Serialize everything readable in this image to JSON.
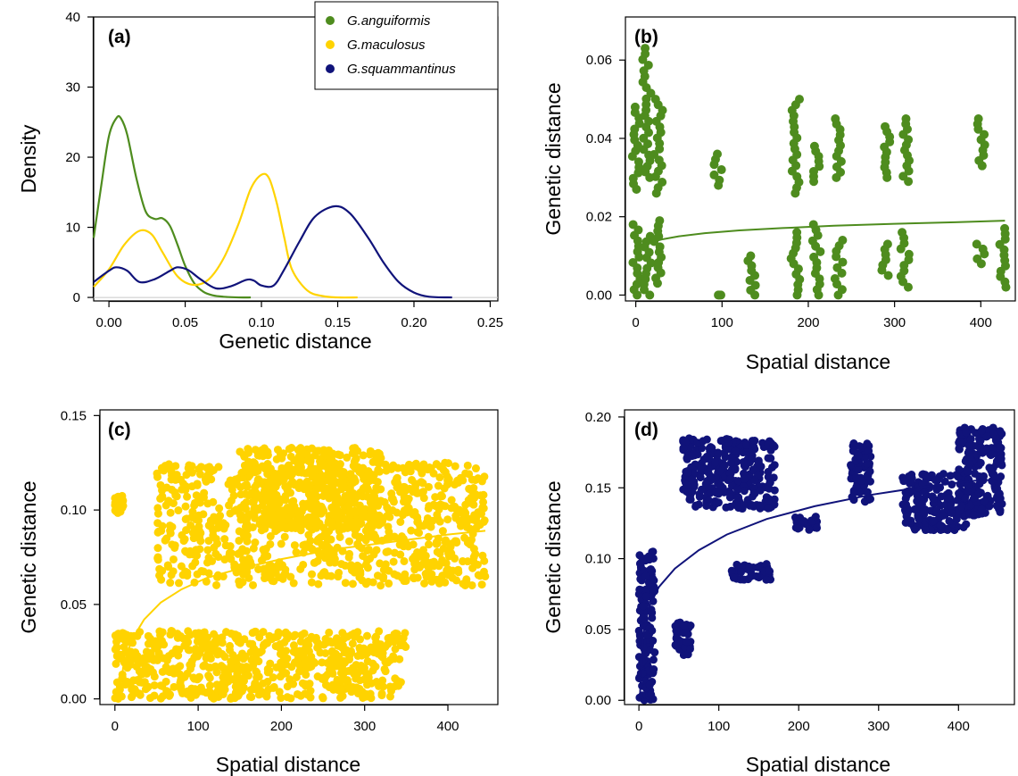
{
  "colors": {
    "anguiformis": "#4e8c1e",
    "maculosus": "#ffd300",
    "squammantinus": "#10137a",
    "zero_line": "#c8c8c8"
  },
  "chart_data": [
    {
      "panel": "(a)",
      "type": "line",
      "xlabel": "Genetic distance",
      "ylabel": "Density",
      "xlim": [
        -0.01,
        0.255
      ],
      "ylim": [
        -0.5,
        40
      ],
      "xticks": [
        "0.00",
        "0.05",
        "0.10",
        "0.15",
        "0.20",
        "0.25"
      ],
      "xtick_values": [
        0,
        0.05,
        0.1,
        0.15,
        0.2,
        0.25
      ],
      "yticks": [
        "0",
        "10",
        "20",
        "30",
        "40"
      ],
      "ytick_values": [
        0,
        10,
        20,
        30,
        40
      ],
      "legend": {
        "placement": "top-right",
        "entries": [
          "G.anguiformis",
          "G.maculosus",
          "G.squammantinus"
        ]
      },
      "series": [
        {
          "name": "G.anguiformis",
          "color_key": "anguiformis",
          "x": [
            -0.01,
            -0.005,
            0.0,
            0.005,
            0.008,
            0.012,
            0.018,
            0.024,
            0.03,
            0.035,
            0.04,
            0.045,
            0.05,
            0.056,
            0.062,
            0.068,
            0.075,
            0.085,
            0.093
          ],
          "y": [
            8.5,
            16,
            23,
            25.6,
            25.5,
            23.2,
            17,
            12.3,
            11.2,
            11.3,
            10.2,
            7.5,
            4.5,
            2,
            0.8,
            0.3,
            0.1,
            0,
            0
          ]
        },
        {
          "name": "G.maculosus",
          "color_key": "maculosus",
          "x": [
            -0.01,
            0.0,
            0.01,
            0.02,
            0.028,
            0.035,
            0.045,
            0.055,
            0.065,
            0.075,
            0.085,
            0.093,
            0.1,
            0.105,
            0.11,
            0.115,
            0.12,
            0.13,
            0.14,
            0.15,
            0.163
          ],
          "y": [
            1.5,
            4,
            7.5,
            9.5,
            9,
            6.5,
            3,
            1.8,
            2.5,
            5.5,
            10.5,
            15.5,
            17.5,
            17,
            13.5,
            8.5,
            4,
            1,
            0.2,
            0,
            0
          ]
        },
        {
          "name": "G.squammantinus",
          "color_key": "squammantinus",
          "x": [
            -0.01,
            0.0,
            0.005,
            0.012,
            0.02,
            0.03,
            0.04,
            0.045,
            0.052,
            0.06,
            0.07,
            0.08,
            0.09,
            0.095,
            0.1,
            0.108,
            0.115,
            0.125,
            0.135,
            0.148,
            0.158,
            0.17,
            0.18,
            0.19,
            0.2,
            0.21,
            0.225
          ],
          "y": [
            2.2,
            3.8,
            4.3,
            3.8,
            2.2,
            2.6,
            3.8,
            4.3,
            3.9,
            2.6,
            1.3,
            1.6,
            2.5,
            2.4,
            1.7,
            1.7,
            4,
            8,
            11.5,
            13,
            12,
            8.5,
            5,
            2.2,
            0.7,
            0.1,
            0
          ]
        }
      ]
    },
    {
      "panel": "(b)",
      "type": "scatter",
      "xlabel": "Spatial distance",
      "ylabel": "Genetic distance",
      "xlim": [
        -12,
        440
      ],
      "ylim": [
        -0.0015,
        0.071
      ],
      "xticks": [
        "0",
        "100",
        "200",
        "300",
        "400"
      ],
      "xtick_values": [
        0,
        100,
        200,
        300,
        400
      ],
      "yticks": [
        "0.00",
        "0.02",
        "0.04",
        "0.06"
      ],
      "ytick_values": [
        0,
        0.02,
        0.04,
        0.06
      ],
      "color_key": "anguiformis",
      "fit": {
        "x": [
          1,
          5,
          15,
          30,
          50,
          80,
          120,
          170,
          230,
          300,
          370,
          428
        ],
        "y": [
          0.0118,
          0.0124,
          0.0133,
          0.0142,
          0.015,
          0.0158,
          0.0165,
          0.0171,
          0.0177,
          0.0182,
          0.0186,
          0.019
        ]
      },
      "columns": [
        {
          "x": 0,
          "lo": 0.0,
          "hi": 0.018,
          "lo2": 0.027,
          "hi2": 0.048
        },
        {
          "x": 13,
          "lo": 0.0,
          "hi": 0.015,
          "lo2": 0.03,
          "hi2": 0.063
        },
        {
          "x": 26,
          "lo": 0.003,
          "hi": 0.019,
          "lo2": 0.026,
          "hi2": 0.05
        },
        {
          "x": 95,
          "lo": 0.0,
          "hi": 0.0,
          "lo2": 0.028,
          "hi2": 0.036
        },
        {
          "x": 135,
          "lo": 0.0,
          "hi": 0.01,
          "lo2": null,
          "hi2": null
        },
        {
          "x": 185,
          "lo": 0.0,
          "hi": 0.016,
          "lo2": 0.026,
          "hi2": 0.05
        },
        {
          "x": 210,
          "lo": 0.0,
          "hi": 0.018,
          "lo2": 0.029,
          "hi2": 0.038
        },
        {
          "x": 235,
          "lo": 0.0,
          "hi": 0.014,
          "lo2": 0.03,
          "hi2": 0.045
        },
        {
          "x": 290,
          "lo": 0.005,
          "hi": 0.013,
          "lo2": 0.03,
          "hi2": 0.043
        },
        {
          "x": 312,
          "lo": 0.002,
          "hi": 0.016,
          "lo2": 0.029,
          "hi2": 0.045
        },
        {
          "x": 400,
          "lo": 0.008,
          "hi": 0.013,
          "lo2": 0.033,
          "hi2": 0.045
        },
        {
          "x": 425,
          "lo": 0.002,
          "hi": 0.017,
          "lo2": null,
          "hi2": null
        }
      ]
    },
    {
      "panel": "(c)",
      "type": "scatter",
      "xlabel": "Spatial distance",
      "ylabel": "Genetic distance",
      "xlim": [
        -18,
        460
      ],
      "ylim": [
        -0.003,
        0.153
      ],
      "xticks": [
        "0",
        "100",
        "200",
        "300",
        "400"
      ],
      "xtick_values": [
        0,
        100,
        200,
        300,
        400
      ],
      "yticks": [
        "0.00",
        "0.05",
        "0.10",
        "0.15"
      ],
      "ytick_values": [
        0,
        0.05,
        0.1,
        0.15
      ],
      "color_key": "maculosus",
      "fit": {
        "x": [
          5,
          10,
          20,
          35,
          55,
          80,
          110,
          150,
          200,
          260,
          330,
          400,
          445
        ],
        "y": [
          0.0,
          0.017,
          0.031,
          0.042,
          0.051,
          0.058,
          0.064,
          0.069,
          0.074,
          0.079,
          0.083,
          0.087,
          0.089
        ]
      },
      "clouds": [
        {
          "x0": 0,
          "x1": 350,
          "lo": 0.0,
          "hi": 0.036
        },
        {
          "x0": 0,
          "x1": 10,
          "lo": 0.098,
          "hi": 0.108
        },
        {
          "x0": 50,
          "x1": 445,
          "lo": 0.06,
          "hi": 0.125
        },
        {
          "x0": 150,
          "x1": 320,
          "lo": 0.09,
          "hi": 0.133
        }
      ]
    },
    {
      "panel": "(d)",
      "type": "scatter",
      "xlabel": "Spatial distance",
      "ylabel": "Genetic distance",
      "xlim": [
        -18,
        470
      ],
      "ylim": [
        -0.003,
        0.205
      ],
      "xticks": [
        "0",
        "100",
        "200",
        "300",
        "400"
      ],
      "xtick_values": [
        0,
        100,
        200,
        300,
        400
      ],
      "yticks": [
        "0.00",
        "0.05",
        "0.10",
        "0.15",
        "0.20"
      ],
      "ytick_values": [
        0,
        0.05,
        0.1,
        0.15,
        0.2
      ],
      "color_key": "squammantinus",
      "fit": {
        "x": [
          1,
          5,
          12,
          25,
          45,
          75,
          110,
          160,
          220,
          290,
          360,
          420,
          455
        ],
        "y": [
          0.0,
          0.045,
          0.065,
          0.08,
          0.093,
          0.106,
          0.117,
          0.128,
          0.137,
          0.145,
          0.151,
          0.155,
          0.156
        ]
      },
      "clouds": [
        {
          "x0": 0,
          "x1": 20,
          "lo": 0.0,
          "hi": 0.105
        },
        {
          "x0": 45,
          "x1": 65,
          "lo": 0.03,
          "hi": 0.056
        },
        {
          "x0": 55,
          "x1": 170,
          "lo": 0.135,
          "hi": 0.185
        },
        {
          "x0": 115,
          "x1": 165,
          "lo": 0.085,
          "hi": 0.097
        },
        {
          "x0": 195,
          "x1": 225,
          "lo": 0.12,
          "hi": 0.13
        },
        {
          "x0": 265,
          "x1": 290,
          "lo": 0.14,
          "hi": 0.182
        },
        {
          "x0": 330,
          "x1": 410,
          "lo": 0.12,
          "hi": 0.16
        },
        {
          "x0": 400,
          "x1": 455,
          "lo": 0.13,
          "hi": 0.193
        }
      ]
    }
  ]
}
